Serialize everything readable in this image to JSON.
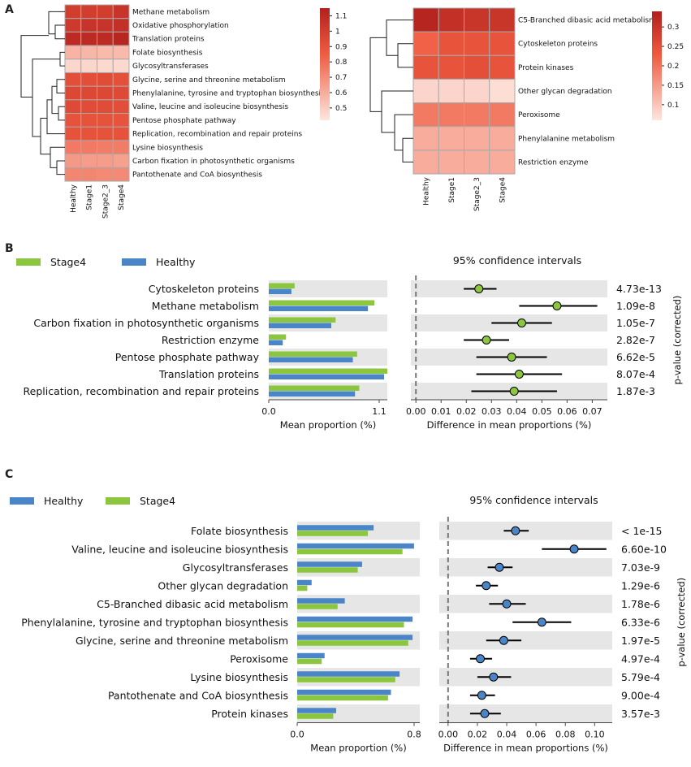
{
  "panel_labels": [
    "A",
    "B",
    "C"
  ],
  "chart_data": [
    {
      "type": "heatmap",
      "panel": "A",
      "columns": [
        "Healthy",
        "Stage1",
        "Stage2_3",
        "Stage4"
      ],
      "rows": [
        {
          "label": "Methane metabolism",
          "values": [
            1.0,
            1.0,
            1.0,
            1.05
          ]
        },
        {
          "label": "Oxidative phosphorylation",
          "values": [
            1.02,
            1.05,
            1.05,
            1.07
          ]
        },
        {
          "label": "Translation proteins",
          "values": [
            1.1,
            1.1,
            1.1,
            1.12
          ]
        },
        {
          "label": "Folate biosynthesis",
          "values": [
            0.58,
            0.57,
            0.56,
            0.56
          ]
        },
        {
          "label": "Glycosyltransferases",
          "values": [
            0.47,
            0.47,
            0.46,
            0.46
          ]
        },
        {
          "label": "Glycine, serine and threonine metabolism",
          "values": [
            0.92,
            0.92,
            0.93,
            0.91
          ]
        },
        {
          "label": "Phenylalanine, tyrosine and tryptophan biosynthesis",
          "values": [
            0.95,
            0.95,
            0.95,
            0.94
          ]
        },
        {
          "label": "Valine, leucine and isoleucine biosynthesis",
          "values": [
            0.94,
            0.93,
            0.93,
            0.92
          ]
        },
        {
          "label": "Pentose phosphate pathway",
          "values": [
            0.9,
            0.9,
            0.9,
            0.89
          ]
        },
        {
          "label": "Replication, recombination and repair proteins",
          "values": [
            0.9,
            0.9,
            0.9,
            0.9
          ]
        },
        {
          "label": "Lysine biosynthesis",
          "values": [
            0.76,
            0.76,
            0.75,
            0.75
          ]
        },
        {
          "label": "Carbon fixation in photosynthetic organisms",
          "values": [
            0.66,
            0.65,
            0.65,
            0.64
          ]
        },
        {
          "label": "Pantothenate and CoA biosynthesis",
          "values": [
            0.72,
            0.72,
            0.71,
            0.71
          ]
        }
      ],
      "colorbar": {
        "min": 0.42,
        "max": 1.15,
        "ticks": [
          "1.1",
          "1",
          "0.9",
          "0.8",
          "0.7",
          "0.6",
          "0.5"
        ],
        "tick_values": [
          1.1,
          1.0,
          0.9,
          0.8,
          0.7,
          0.6,
          0.5
        ]
      },
      "colors": {
        "low": "#fde6de",
        "mid": "#ef5a3f",
        "high": "#b2201d"
      }
    },
    {
      "type": "heatmap",
      "panel": "A",
      "columns": [
        "Healthy",
        "Stage1",
        "Stage2_3",
        "Stage4"
      ],
      "rows": [
        {
          "label": "C5-Branched dibasic acid metabolism",
          "values": [
            0.33,
            0.31,
            0.3,
            0.3
          ]
        },
        {
          "label": "Cytoskeleton proteins",
          "values": [
            0.22,
            0.24,
            0.24,
            0.24
          ]
        },
        {
          "label": "Protein kinases",
          "values": [
            0.24,
            0.24,
            0.25,
            0.24
          ]
        },
        {
          "label": "Other glycan degradation",
          "values": [
            0.08,
            0.08,
            0.08,
            0.07
          ]
        },
        {
          "label": "Peroxisome",
          "values": [
            0.19,
            0.19,
            0.19,
            0.19
          ]
        },
        {
          "label": "Phenylalanine metabolism",
          "values": [
            0.13,
            0.13,
            0.13,
            0.13
          ]
        },
        {
          "label": "Restriction enzyme",
          "values": [
            0.13,
            0.13,
            0.13,
            0.13
          ]
        }
      ],
      "colorbar": {
        "min": 0.06,
        "max": 0.34,
        "ticks": [
          "0.3",
          "0.25",
          "0.2",
          "0.15",
          "0.1"
        ],
        "tick_values": [
          0.3,
          0.25,
          0.2,
          0.15,
          0.1
        ]
      },
      "colors": {
        "low": "#fde6de",
        "mid": "#ef5a3f",
        "high": "#b2201d"
      }
    },
    {
      "type": "bar",
      "panel": "B",
      "legend": [
        "Stage4",
        "Healthy"
      ],
      "series_colors": {
        "Stage4": "#8cc63f",
        "Healthy": "#4a86c7"
      },
      "categories": [
        "Cytoskeleton proteins",
        "Methane metabolism",
        "Carbon fixation in photosynthetic organisms",
        "Restriction enzyme",
        "Pentose phosphate pathway",
        "Translation proteins",
        "Replication, recombination and repair proteins"
      ],
      "series": [
        {
          "name": "Stage4",
          "values": [
            0.24,
            0.98,
            0.62,
            0.16,
            0.82,
            1.1,
            0.84
          ]
        },
        {
          "name": "Healthy",
          "values": [
            0.21,
            0.92,
            0.58,
            0.13,
            0.78,
            1.07,
            0.8
          ]
        }
      ],
      "xlabel": "Mean proportion (%)",
      "xlim": [
        0.0,
        1.1
      ],
      "xticks": [
        "0.0",
        "1.1"
      ]
    },
    {
      "type": "scatter",
      "panel": "B",
      "title": "95% confidence intervals",
      "categories": [
        "Cytoskeleton proteins",
        "Methane metabolism",
        "Carbon fixation in photosynthetic organisms",
        "Restriction enzyme",
        "Pentose phosphate pathway",
        "Translation proteins",
        "Replication, recombination and repair proteins"
      ],
      "estimate": [
        0.025,
        0.056,
        0.042,
        0.028,
        0.038,
        0.041,
        0.039
      ],
      "ci_low": [
        0.019,
        0.041,
        0.03,
        0.019,
        0.024,
        0.024,
        0.022
      ],
      "ci_high": [
        0.032,
        0.072,
        0.054,
        0.037,
        0.052,
        0.058,
        0.056
      ],
      "pvalues": [
        "4.73e-13",
        "1.09e-8",
        "1.05e-7",
        "2.82e-7",
        "6.62e-5",
        "8.07e-4",
        "1.87e-3"
      ],
      "xlabel": "Difference in mean proportions (%)",
      "xlim": [
        -0.002,
        0.076
      ],
      "xticks": [
        0.0,
        0.01,
        0.02,
        0.03,
        0.04,
        0.05,
        0.06,
        0.07
      ],
      "xtick_labels": [
        "0.00",
        "0.01",
        "0.02",
        "0.03",
        "0.04",
        "0.05",
        "0.06",
        "0.07"
      ],
      "ylabel": "p-value (corrected)",
      "point_color": "#8cc63f"
    },
    {
      "type": "bar",
      "panel": "C",
      "legend": [
        "Healthy",
        "Stage4"
      ],
      "series_colors": {
        "Healthy": "#4a86c7",
        "Stage4": "#8cc63f"
      },
      "categories": [
        "Folate biosynthesis",
        "Valine, leucine and isoleucine biosynthesis",
        "Glycosyltransferases",
        "Other glycan degradation",
        "C5-Branched dibasic acid metabolism",
        "Phenylalanine, tyrosine and tryptophan biosynthesis",
        "Glycine, serine and threonine metabolism",
        "Peroxisome",
        "Lysine biosynthesis",
        "Pantothenate and CoA biosynthesis",
        "Protein kinases"
      ],
      "series": [
        {
          "name": "Healthy",
          "values": [
            0.53,
            0.81,
            0.45,
            0.1,
            0.33,
            0.8,
            0.8,
            0.19,
            0.71,
            0.65,
            0.27
          ]
        },
        {
          "name": "Stage4",
          "values": [
            0.49,
            0.73,
            0.42,
            0.07,
            0.28,
            0.74,
            0.77,
            0.17,
            0.68,
            0.63,
            0.25
          ]
        }
      ],
      "xlabel": "Mean proportion (%)",
      "xlim": [
        0.0,
        0.85
      ],
      "xticks": [
        "0.0",
        "0.8"
      ]
    },
    {
      "type": "scatter",
      "panel": "C",
      "title": "95% confidence intervals",
      "categories": [
        "Folate biosynthesis",
        "Valine, leucine and isoleucine biosynthesis",
        "Glycosyltransferases",
        "Other glycan degradation",
        "C5-Branched dibasic acid metabolism",
        "Phenylalanine, tyrosine and tryptophan biosynthesis",
        "Glycine, serine and threonine metabolism",
        "Peroxisome",
        "Lysine biosynthesis",
        "Pantothenate and CoA biosynthesis",
        "Protein kinases"
      ],
      "estimate": [
        0.046,
        0.086,
        0.035,
        0.026,
        0.04,
        0.064,
        0.038,
        0.022,
        0.031,
        0.023,
        0.025
      ],
      "ci_low": [
        0.038,
        0.064,
        0.027,
        0.019,
        0.028,
        0.044,
        0.026,
        0.015,
        0.02,
        0.015,
        0.015
      ],
      "ci_high": [
        0.055,
        0.108,
        0.044,
        0.034,
        0.053,
        0.084,
        0.05,
        0.03,
        0.043,
        0.032,
        0.036
      ],
      "pvalues": [
        "< 1e-15",
        "6.60e-10",
        "7.03e-9",
        "1.29e-6",
        "1.78e-6",
        "6.33e-6",
        "1.97e-5",
        "4.97e-4",
        "5.79e-4",
        "9.00e-4",
        "3.57e-3"
      ],
      "xlabel": "Difference in mean proportions (%)",
      "xlim": [
        -0.006,
        0.112
      ],
      "xticks": [
        0.0,
        0.02,
        0.04,
        0.06,
        0.08,
        0.1
      ],
      "xtick_labels": [
        "0.00",
        "0.02",
        "0.04",
        "0.06",
        "0.08",
        "0.10"
      ],
      "ylabel": "p-value (corrected)",
      "point_color": "#4a86c7"
    }
  ]
}
